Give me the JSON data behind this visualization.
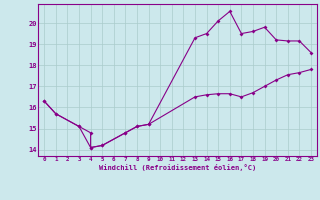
{
  "xlabel": "Windchill (Refroidissement éolien,°C)",
  "bg_color": "#cce8ec",
  "grid_color": "#aacccc",
  "line_color": "#880088",
  "xlim": [
    -0.5,
    23.5
  ],
  "ylim": [
    13.7,
    20.9
  ],
  "xticks": [
    0,
    1,
    2,
    3,
    4,
    5,
    6,
    7,
    8,
    9,
    10,
    11,
    12,
    13,
    14,
    15,
    16,
    17,
    18,
    19,
    20,
    21,
    22,
    23
  ],
  "yticks": [
    14,
    15,
    16,
    17,
    18,
    19,
    20
  ],
  "line1_x": [
    0,
    1,
    3,
    4,
    4,
    5,
    7,
    8,
    9,
    13,
    14,
    15,
    16,
    17,
    18,
    19,
    20,
    21,
    22,
    23
  ],
  "line1_y": [
    16.3,
    15.7,
    15.1,
    14.8,
    14.1,
    14.2,
    14.8,
    15.1,
    15.2,
    19.3,
    19.5,
    20.1,
    20.55,
    19.5,
    19.6,
    19.8,
    19.2,
    19.15,
    19.15,
    18.6
  ],
  "line2_x": [
    0,
    1,
    3,
    4,
    5,
    7,
    8,
    9,
    13,
    14,
    15,
    16,
    17,
    18,
    19,
    20,
    21,
    22,
    23
  ],
  "line2_y": [
    16.3,
    15.7,
    15.1,
    14.1,
    14.2,
    14.8,
    15.1,
    15.2,
    16.5,
    16.6,
    16.65,
    16.65,
    16.5,
    16.7,
    17.0,
    17.3,
    17.55,
    17.65,
    17.8
  ]
}
